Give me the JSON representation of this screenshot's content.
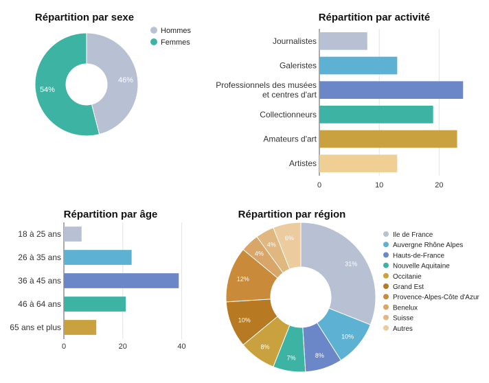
{
  "chart_data": [
    {
      "type": "pie",
      "title": "Répartition par sexe",
      "legend_position": "top-right",
      "donut": true,
      "slices": [
        {
          "label": "Hommes",
          "value": 46,
          "display": "46%",
          "color": "#b8c0d4"
        },
        {
          "label": "Femmes",
          "value": 54,
          "display": "54%",
          "color": "#3db3a4"
        }
      ]
    },
    {
      "type": "bar",
      "orientation": "horizontal",
      "title": "Répartition par activité",
      "categories": [
        "Journalistes",
        "Galeristes",
        "Professionnels des musées et centres d'art",
        "Collectionneurs",
        "Amateurs d'art",
        "Artistes"
      ],
      "category_lines": [
        [
          "Journalistes"
        ],
        [
          "Galeristes"
        ],
        [
          "Professionnels des musées",
          "et centres d'art"
        ],
        [
          "Collectionneurs"
        ],
        [
          "Amateurs d'art"
        ],
        [
          "Artistes"
        ]
      ],
      "values": [
        8,
        13,
        24,
        19,
        23,
        13
      ],
      "colors": [
        "#b8c0d4",
        "#5db1d2",
        "#6b87c7",
        "#3db3a4",
        "#c9a23f",
        "#efcf93"
      ],
      "xlim": [
        0,
        25
      ],
      "xticks": [
        0,
        10,
        20
      ],
      "grid": true
    },
    {
      "type": "bar",
      "orientation": "horizontal",
      "title": "Répartition par âge",
      "categories": [
        "18 à 25 ans",
        "26 à 35 ans",
        "36 à 45 ans",
        "46 à 64 ans",
        "65 ans et plus"
      ],
      "values": [
        6,
        23,
        39,
        21,
        11
      ],
      "colors": [
        "#b8c0d4",
        "#5db1d2",
        "#6b87c7",
        "#3db3a4",
        "#c9a23f"
      ],
      "xlim": [
        0,
        45
      ],
      "xticks": [
        0,
        20,
        40
      ],
      "grid": true
    },
    {
      "type": "pie",
      "title": "Répartition par région",
      "legend_position": "right",
      "donut": true,
      "slices": [
        {
          "label": "Ile de France",
          "value": 31,
          "display": "31%",
          "color": "#b8c0d4"
        },
        {
          "label": "Auvergne Rhône Alpes",
          "value": 10,
          "display": "10%",
          "color": "#5db1d2"
        },
        {
          "label": "Hauts-de-France",
          "value": 8,
          "display": "8%",
          "color": "#6b87c7"
        },
        {
          "label": "Nouvelle Aquitaine",
          "value": 7,
          "display": "7%",
          "color": "#3db3a4"
        },
        {
          "label": "Occitanie",
          "value": 8,
          "display": "8%",
          "color": "#c9a23f"
        },
        {
          "label": "Grand Est",
          "value": 10,
          "display": "10%",
          "color": "#b77a22"
        },
        {
          "label": "Provence-Alpes-Côte d'Azur",
          "value": 12,
          "display": "12%",
          "color": "#c98a3a"
        },
        {
          "label": "Benelux",
          "value": 4,
          "display": "4%",
          "color": "#d9a569"
        },
        {
          "label": "Suisse",
          "value": 4,
          "display": "4%",
          "color": "#e0b77f"
        },
        {
          "label": "Autres",
          "value": 6,
          "display": "6%",
          "color": "#eccb9e"
        }
      ]
    }
  ]
}
